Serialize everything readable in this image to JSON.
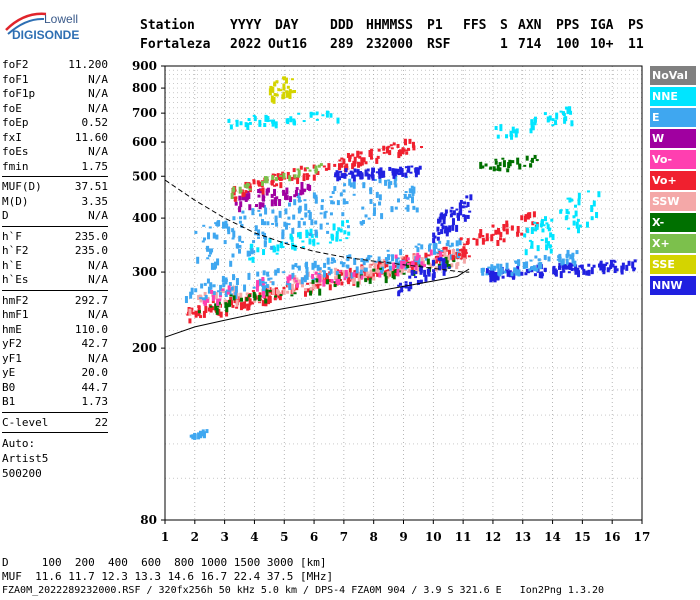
{
  "logo": {
    "line1": "Lowell",
    "line2": "DIGISONDE",
    "colors": {
      "text1": "#3a5a8a",
      "text2": "#2e6fb3",
      "swoosh1": "#e0242b",
      "swoosh2": "#2e6fb3"
    }
  },
  "header": {
    "row1": [
      "Station",
      "YYYY",
      "DAY",
      "DDD",
      "HHMMSS",
      "P1",
      "FFS",
      "S",
      "AXN",
      "PPS",
      "IGA",
      "PS"
    ],
    "row2": [
      "Fortaleza",
      "2022",
      "Out16",
      "289",
      "232000",
      "RSF",
      "1",
      "714",
      "100",
      "10+",
      "11"
    ]
  },
  "params": [
    {
      "key": "foF2",
      "val": "11.200"
    },
    {
      "key": "foF1",
      "val": "N/A"
    },
    {
      "key": "foF1p",
      "val": "N/A"
    },
    {
      "key": "foE",
      "val": "N/A"
    },
    {
      "key": "foEp",
      "val": "0.52"
    },
    {
      "key": "fxI",
      "val": "11.60"
    },
    {
      "key": "foEs",
      "val": "N/A"
    },
    {
      "key": "fmin",
      "val": "1.75"
    },
    {
      "sep": true
    },
    {
      "key": "MUF(D)",
      "val": "37.51"
    },
    {
      "key": "M(D)",
      "val": "3.35"
    },
    {
      "key": "D",
      "val": "N/A"
    },
    {
      "sep": true
    },
    {
      "key": "h`F",
      "val": "235.0"
    },
    {
      "key": "h`F2",
      "val": "235.0"
    },
    {
      "key": "h`E",
      "val": "N/A"
    },
    {
      "key": "h`Es",
      "val": "N/A"
    },
    {
      "sep": true
    },
    {
      "key": "hmF2",
      "val": "292.7"
    },
    {
      "key": "hmF1",
      "val": "N/A"
    },
    {
      "key": "hmE",
      "val": "110.0"
    },
    {
      "key": "yF2",
      "val": "42.7"
    },
    {
      "key": "yF1",
      "val": "N/A"
    },
    {
      "key": "yE",
      "val": "20.0"
    },
    {
      "key": "B0",
      "val": "44.7"
    },
    {
      "key": "B1",
      "val": "1.73"
    },
    {
      "sep": true
    },
    {
      "key": "C-level",
      "val": "22"
    },
    {
      "sep": true
    },
    {
      "text": "Auto:"
    },
    {
      "text": "Artist5"
    },
    {
      "text": "500200"
    }
  ],
  "footer": {
    "line1": "D     100  200  400  600  800 1000 1500 3000 [km]",
    "line2": "MUF  11.6 11.7 12.3 13.3 14.6 16.7 22.4 37.5 [MHz]",
    "line3": "FZA0M_2022289232000.RSF / 320fx256h 50 kHz 5.0 km / DPS-4 FZA0M 904 / 3.9 S 321.6 E   Ion2Png 1.3.20"
  },
  "legend": [
    {
      "label": "NoVal",
      "color": "#808080"
    },
    {
      "label": "NNE",
      "color": "#00e5ff"
    },
    {
      "label": "E",
      "color": "#3fa7f0"
    },
    {
      "label": "W",
      "color": "#a000a0"
    },
    {
      "label": "Vo-",
      "color": "#ff3fb0"
    },
    {
      "label": "Vo+",
      "color": "#f0202f"
    },
    {
      "label": "SSW",
      "color": "#f4a8a8"
    },
    {
      "label": "X-",
      "color": "#007000"
    },
    {
      "label": "X+",
      "color": "#7cc04c"
    },
    {
      "label": "SSE",
      "color": "#d4d400"
    },
    {
      "label": "NNW",
      "color": "#2020e0"
    }
  ],
  "chart_data": {
    "type": "scatter",
    "x_ticks": [
      "1",
      "2",
      "3",
      "4",
      "5",
      "6",
      "7",
      "8",
      "9",
      "10",
      "11",
      "12",
      "13",
      "14",
      "15",
      "16",
      "17"
    ],
    "y_ticks": [
      "80",
      "200",
      "300",
      "400",
      "500",
      "600",
      "700",
      "800",
      "900"
    ],
    "xlim": [
      1,
      17
    ],
    "y_scale": "log",
    "ylim": [
      80,
      900
    ],
    "grid": "dotted",
    "clusters": [
      {
        "trace": "Vo+",
        "x": [
          1.7,
          11.2
        ],
        "y": [
          240,
          340
        ],
        "n": 230,
        "spread": 9
      },
      {
        "trace": "SSW",
        "x": [
          1.7,
          11.0
        ],
        "y": [
          255,
          330
        ],
        "n": 150,
        "spread": 10
      },
      {
        "trace": "E",
        "x": [
          1.7,
          11.0
        ],
        "y": [
          270,
          345
        ],
        "n": 160,
        "spread": 12
      },
      {
        "trace": "X-",
        "x": [
          2.0,
          10.8
        ],
        "y": [
          250,
          320
        ],
        "n": 60,
        "spread": 8
      },
      {
        "trace": "Vo-",
        "x": [
          2.0,
          10.5
        ],
        "y": [
          265,
          330
        ],
        "n": 60,
        "spread": 10
      },
      {
        "trace": "NNE",
        "x": [
          3.8,
          7.2
        ],
        "y": [
          340,
          380
        ],
        "n": 50,
        "spread": 12
      },
      {
        "trace": "E",
        "x": [
          2.0,
          9.5
        ],
        "y": [
          340,
          480
        ],
        "n": 180,
        "spread": 30
      },
      {
        "trace": "W",
        "x": [
          3.3,
          5.8
        ],
        "y": [
          440,
          470
        ],
        "n": 50,
        "spread": 10
      },
      {
        "trace": "Vo+",
        "x": [
          3.2,
          9.5
        ],
        "y": [
          460,
          600
        ],
        "n": 120,
        "spread": 8
      },
      {
        "trace": "X+",
        "x": [
          3.2,
          6.2
        ],
        "y": [
          465,
          530
        ],
        "n": 30,
        "spread": 6
      },
      {
        "trace": "NNW",
        "x": [
          6.6,
          9.6
        ],
        "y": [
          510,
          520
        ],
        "n": 70,
        "spread": 5
      },
      {
        "trace": "NNW",
        "x": [
          10.0,
          11.2
        ],
        "y": [
          380,
          430
        ],
        "n": 50,
        "spread": 15
      },
      {
        "trace": "Vo+",
        "x": [
          10.5,
          13.5
        ],
        "y": [
          340,
          400
        ],
        "n": 50,
        "spread": 12
      },
      {
        "trace": "NNW",
        "x": [
          11.8,
          16.8
        ],
        "y": [
          300,
          315
        ],
        "n": 120,
        "spread": 6
      },
      {
        "trace": "E",
        "x": [
          11.6,
          14.8
        ],
        "y": [
          300,
          330
        ],
        "n": 60,
        "spread": 8
      },
      {
        "trace": "NNE",
        "x": [
          12.0,
          14.6
        ],
        "y": [
          640,
          700
        ],
        "n": 40,
        "spread": 10
      },
      {
        "trace": "SSE",
        "x": [
          4.5,
          5.3
        ],
        "y": [
          780,
          830
        ],
        "n": 30,
        "spread": 12
      },
      {
        "trace": "NNE",
        "x": [
          3.0,
          7.0
        ],
        "y": [
          670,
          700
        ],
        "n": 40,
        "spread": 6
      },
      {
        "trace": "E",
        "x": [
          1.8,
          2.5
        ],
        "y": [
          126,
          130
        ],
        "n": 12,
        "spread": 2
      },
      {
        "trace": "X-",
        "x": [
          11.5,
          13.5
        ],
        "y": [
          530,
          550
        ],
        "n": 30,
        "spread": 8
      },
      {
        "trace": "NNE",
        "x": [
          13.0,
          15.5
        ],
        "y": [
          340,
          450
        ],
        "n": 60,
        "spread": 25
      },
      {
        "trace": "NNW",
        "x": [
          8.8,
          10.5
        ],
        "y": [
          280,
          320
        ],
        "n": 40,
        "spread": 10
      }
    ],
    "model_curve": {
      "x": [
        1.0,
        2.0,
        3.0,
        4.0,
        5.0,
        6.0,
        7.0,
        8.0,
        9.0,
        10.0,
        10.8,
        11.0,
        11.2
      ],
      "y": [
        212,
        224,
        232,
        240,
        247,
        254,
        262,
        270,
        278,
        286,
        293,
        299,
        305
      ]
    },
    "dashed_curve": {
      "x": [
        1.0,
        2.0,
        3.0,
        4.0,
        5.0,
        6.0,
        7.0,
        8.0,
        9.0,
        10.0,
        11.0,
        11.2
      ],
      "y": [
        490,
        440,
        400,
        370,
        350,
        335,
        325,
        318,
        312,
        306,
        300,
        300
      ]
    }
  }
}
